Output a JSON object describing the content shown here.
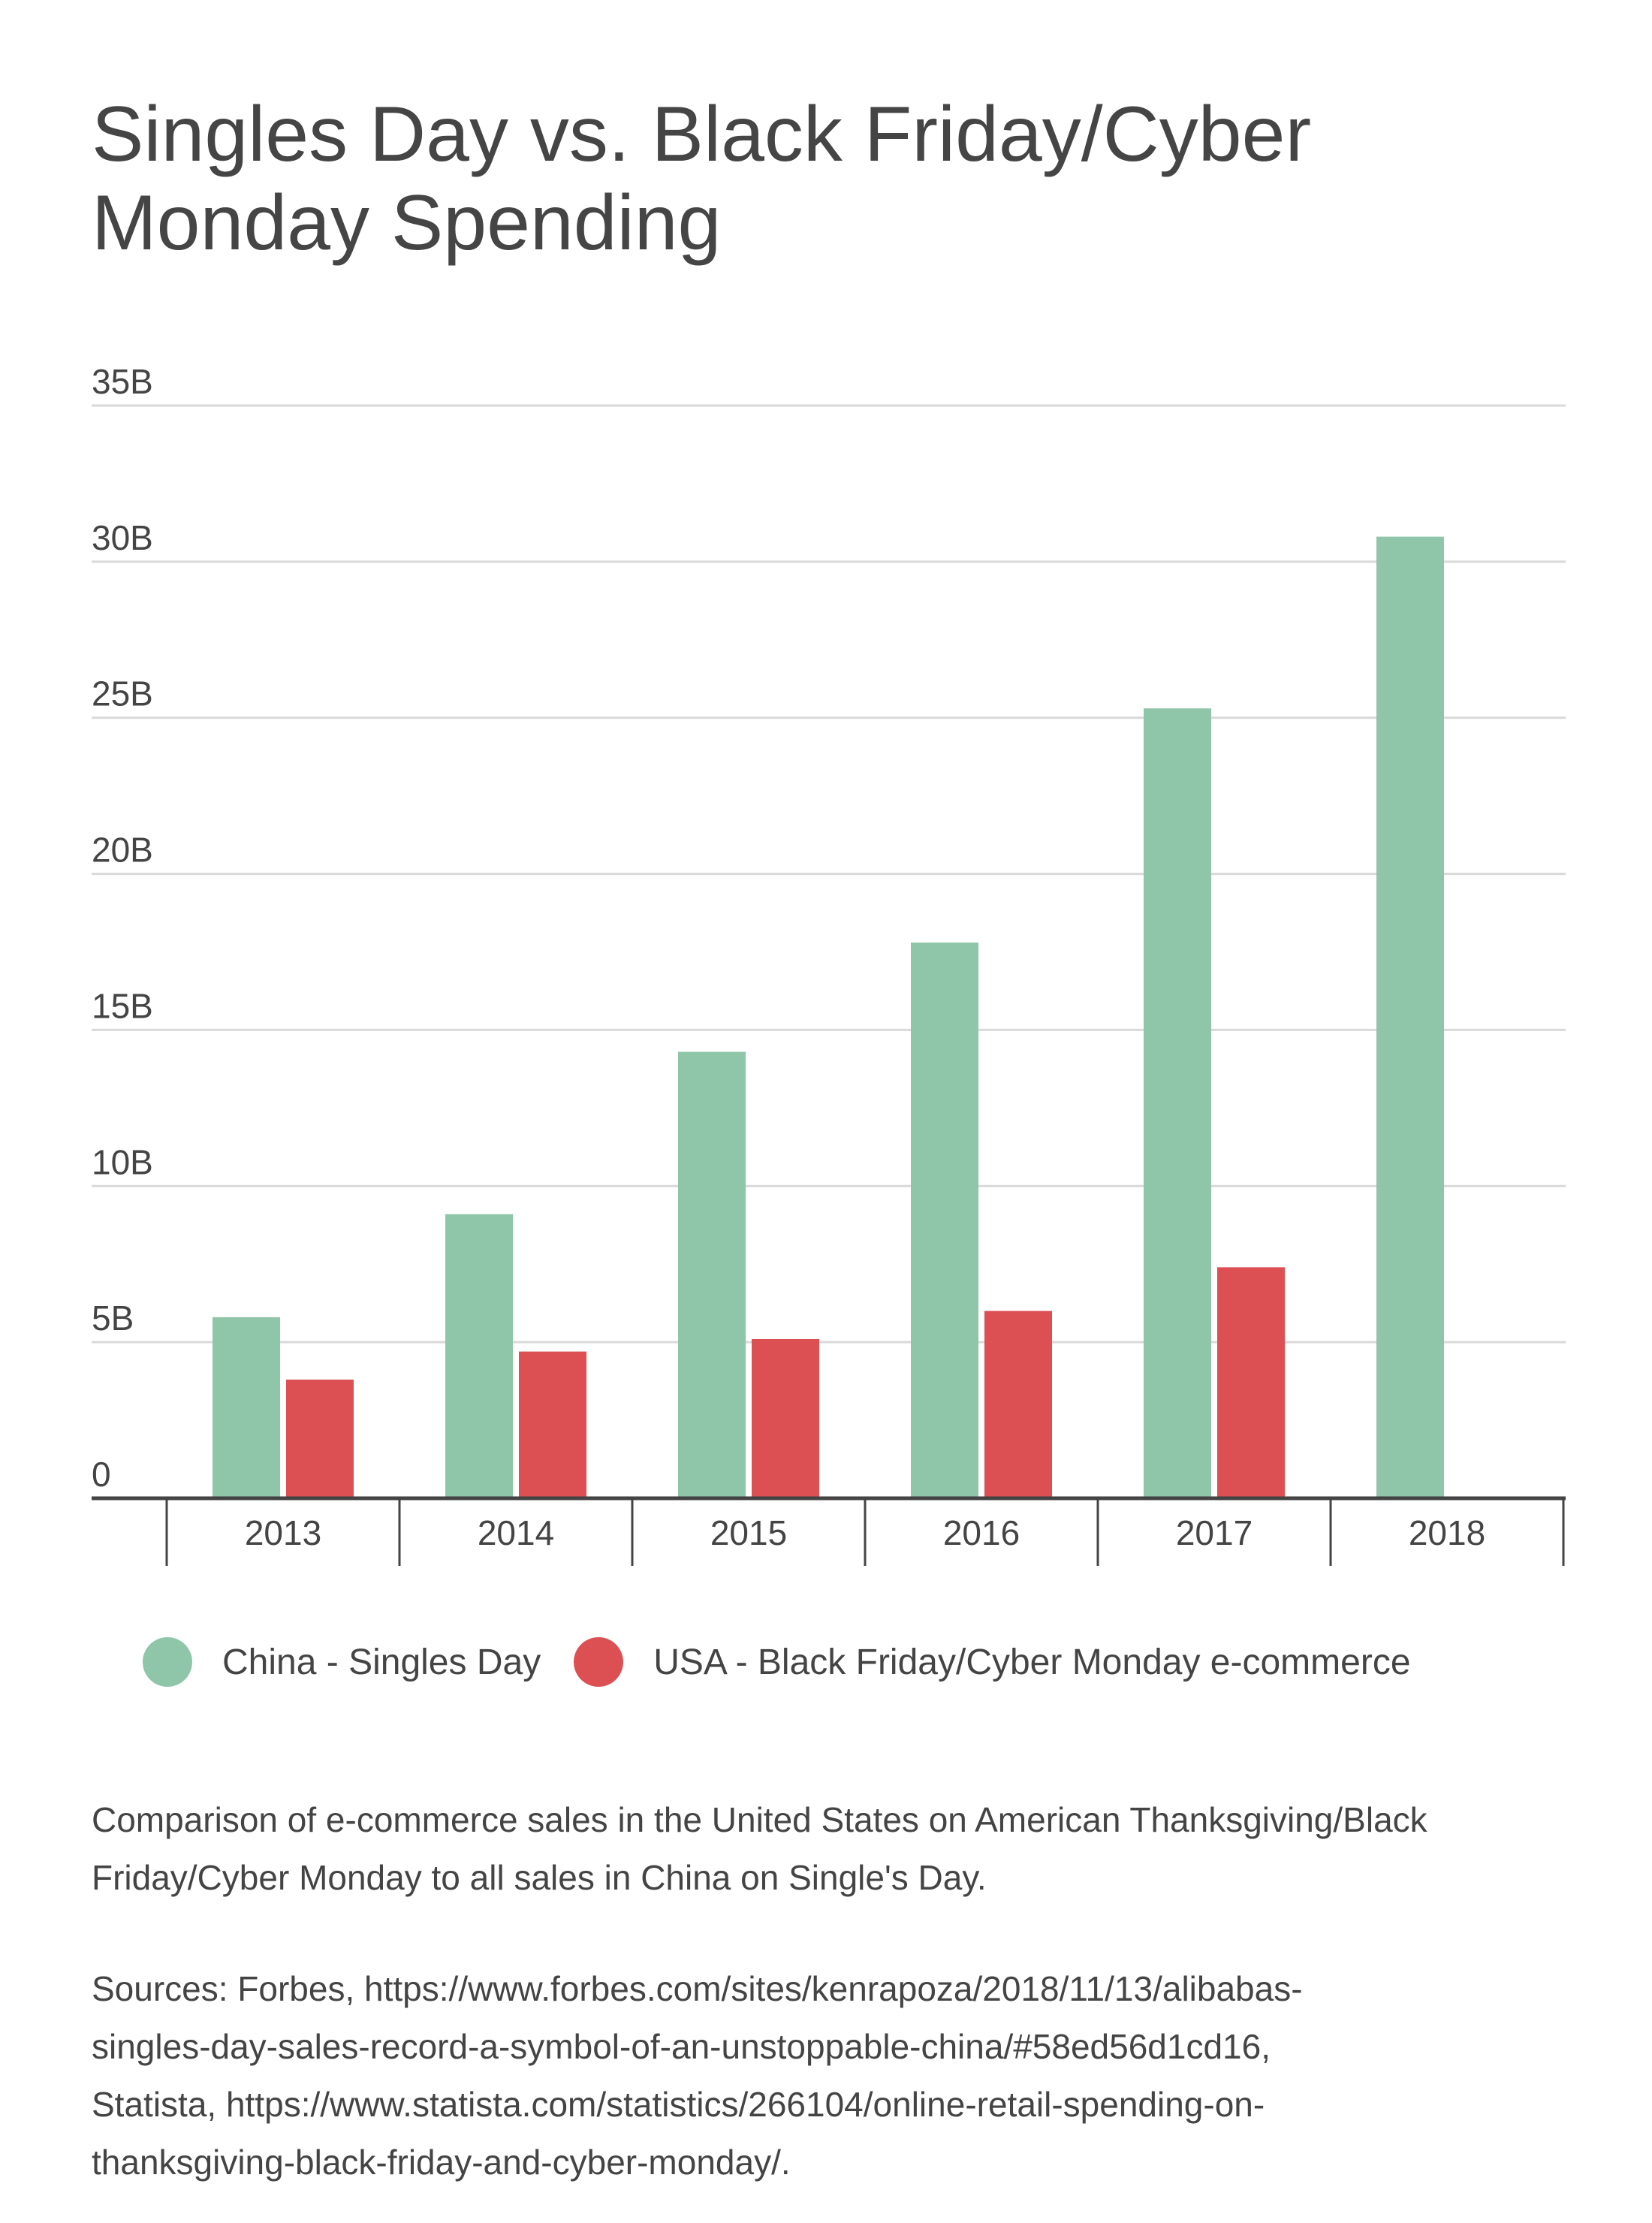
{
  "title": "Singles Day vs. Black Friday/Cyber Monday Spending",
  "chart_data": {
    "type": "bar",
    "title": "Singles Day vs. Black Friday/Cyber Monday Spending",
    "categories": [
      "2013",
      "2014",
      "2015",
      "2016",
      "2017",
      "2018"
    ],
    "series": [
      {
        "name": "China - Singles Day",
        "color": "#8fc5a8",
        "values": [
          5.8,
          9.1,
          14.3,
          17.8,
          25.3,
          30.8
        ]
      },
      {
        "name": "USA - Black Friday/Cyber Monday e-commerce",
        "color": "#dc5054",
        "values": [
          3.8,
          4.7,
          5.1,
          6.0,
          7.4,
          null
        ]
      }
    ],
    "yticks": [
      {
        "value": 0,
        "label": "0"
      },
      {
        "value": 5,
        "label": "5B"
      },
      {
        "value": 10,
        "label": "10B"
      },
      {
        "value": 15,
        "label": "15B"
      },
      {
        "value": 20,
        "label": "20B"
      },
      {
        "value": 25,
        "label": "25B"
      },
      {
        "value": 30,
        "label": "30B"
      },
      {
        "value": 35,
        "label": "35B"
      }
    ],
    "ylim": [
      0,
      35
    ],
    "xlabel": "",
    "ylabel": "",
    "grid": true,
    "legend": "bottom"
  },
  "caption": "Comparison of e-commerce sales in the United States on American Thanksgiving/Black Friday/Cyber Monday to all sales in China on Single's Day.",
  "sources": [
    "Sources: Forbes, https://www.forbes.com/sites/kenrapoza/2018/11/13/alibabas-",
    "singles-day-sales-record-a-symbol-of-an-unstoppable-china/#58ed56d1cd16,",
    "Statista, https://www.statista.com/statistics/266104/online-retail-spending-on-",
    "thanksgiving-black-friday-and-cyber-monday/."
  ]
}
